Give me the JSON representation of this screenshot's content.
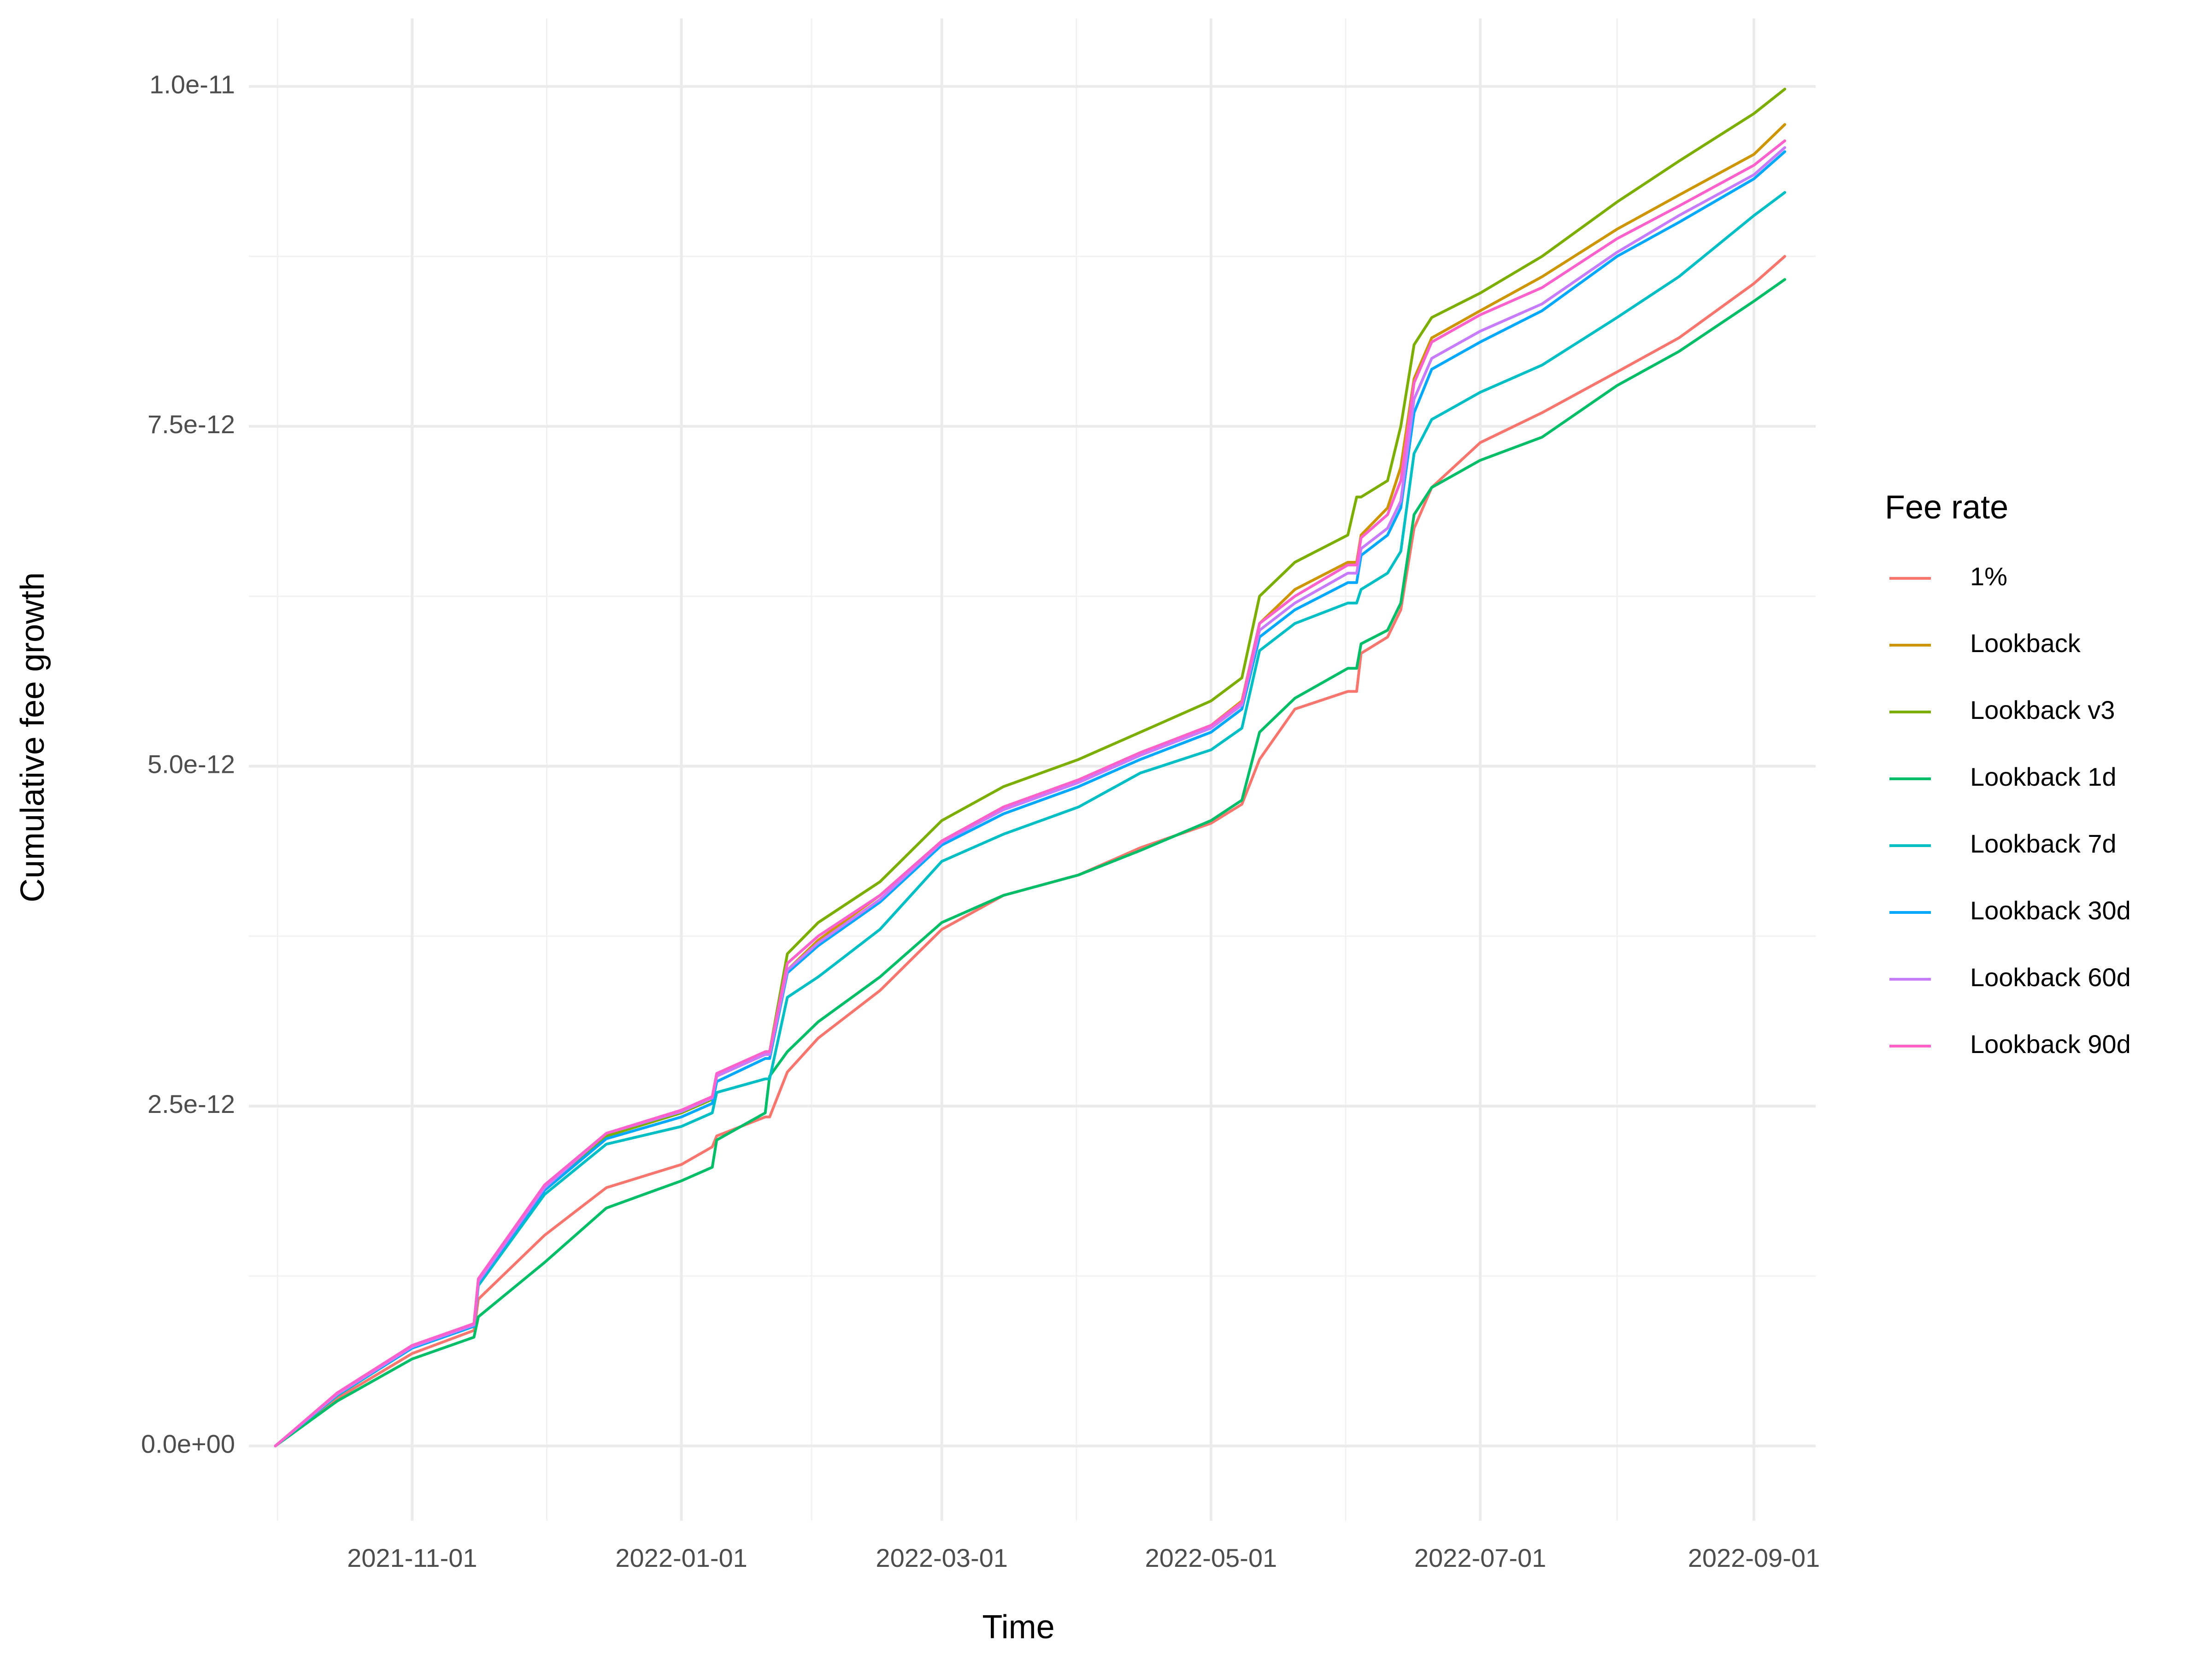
{
  "chart_data": {
    "type": "line",
    "xlabel": "Time",
    "ylabel": "Cumulative fee growth",
    "x_type": "date",
    "xlim": [
      "2021-09-25",
      "2022-09-15"
    ],
    "ylim": [
      -5.5e-13,
      1.05e-11
    ],
    "x_ticks": [
      "2021-11-01",
      "2022-01-01",
      "2022-03-01",
      "2022-05-01",
      "2022-07-01",
      "2022-09-01"
    ],
    "y_ticks": [
      0,
      2.5e-12,
      5e-12,
      7.5e-12,
      1e-11
    ],
    "y_tick_labels": [
      "0.0e+00",
      "2.5e-12",
      "5.0e-12",
      "7.5e-12",
      "1.0e-11"
    ],
    "grid": true,
    "legend": {
      "title": "Fee rate",
      "position": "right"
    },
    "x": [
      "2021-10-01",
      "2021-10-15",
      "2021-11-01",
      "2021-11-15",
      "2021-11-16",
      "2021-12-01",
      "2021-12-15",
      "2022-01-01",
      "2022-01-08",
      "2022-01-09",
      "2022-01-20",
      "2022-01-21",
      "2022-01-25",
      "2022-02-01",
      "2022-02-15",
      "2022-03-01",
      "2022-03-15",
      "2022-04-01",
      "2022-04-15",
      "2022-05-01",
      "2022-05-08",
      "2022-05-12",
      "2022-05-20",
      "2022-06-01",
      "2022-06-03",
      "2022-06-04",
      "2022-06-10",
      "2022-06-13",
      "2022-06-16",
      "2022-06-20",
      "2022-07-01",
      "2022-07-15",
      "2022-08-01",
      "2022-08-15",
      "2022-09-01",
      "2022-09-08"
    ],
    "series": [
      {
        "name": "1%",
        "color": "#F8766D",
        "values": [
          0,
          3.5e-13,
          6.8e-13,
          8.5e-13,
          1.08e-12,
          1.55e-12,
          1.9e-12,
          2.07e-12,
          2.2e-12,
          2.28e-12,
          2.42e-12,
          2.42e-12,
          2.75e-12,
          3e-12,
          3.35e-12,
          3.8e-12,
          4.05e-12,
          4.2e-12,
          4.4e-12,
          4.58e-12,
          4.72e-12,
          5.05e-12,
          5.42e-12,
          5.55e-12,
          5.55e-12,
          5.83e-12,
          5.95e-12,
          6.15e-12,
          6.75e-12,
          7.05e-12,
          7.38e-12,
          7.6e-12,
          7.9e-12,
          8.15e-12,
          8.55e-12,
          8.75e-12
        ]
      },
      {
        "name": "Lookback",
        "color": "#CD9600",
        "values": [
          0,
          3.8e-13,
          7.3e-13,
          9e-13,
          1.22e-12,
          1.9e-12,
          2.28e-12,
          2.45e-12,
          2.55e-12,
          2.72e-12,
          2.88e-12,
          2.88e-12,
          3.5e-12,
          3.72e-12,
          4.05e-12,
          4.45e-12,
          4.7e-12,
          4.9e-12,
          5.1e-12,
          5.3e-12,
          5.48e-12,
          6.05e-12,
          6.3e-12,
          6.5e-12,
          6.5e-12,
          6.7e-12,
          6.9e-12,
          7.2e-12,
          7.85e-12,
          8.15e-12,
          8.35e-12,
          8.6e-12,
          8.95e-12,
          9.2e-12,
          9.5e-12,
          9.72e-12
        ]
      },
      {
        "name": "Lookback v3",
        "color": "#7CAE00",
        "values": [
          0,
          3.8e-13,
          7.3e-13,
          9e-13,
          1.22e-12,
          1.9e-12,
          2.28e-12,
          2.45e-12,
          2.55e-12,
          2.72e-12,
          2.9e-12,
          2.9e-12,
          3.62e-12,
          3.85e-12,
          4.15e-12,
          4.6e-12,
          4.85e-12,
          5.05e-12,
          5.25e-12,
          5.48e-12,
          5.65e-12,
          6.25e-12,
          6.5e-12,
          6.7e-12,
          6.98e-12,
          6.98e-12,
          7.1e-12,
          7.5e-12,
          8.1e-12,
          8.3e-12,
          8.48e-12,
          8.75e-12,
          9.15e-12,
          9.45e-12,
          9.8e-12,
          9.98e-12
        ]
      },
      {
        "name": "Lookback 1d",
        "color": "#00BE67",
        "values": [
          0,
          3.3e-13,
          6.4e-13,
          8e-13,
          9.5e-13,
          1.35e-12,
          1.75e-12,
          1.95e-12,
          2.05e-12,
          2.25e-12,
          2.45e-12,
          2.72e-12,
          2.9e-12,
          3.12e-12,
          3.45e-12,
          3.85e-12,
          4.05e-12,
          4.2e-12,
          4.38e-12,
          4.6e-12,
          4.75e-12,
          5.25e-12,
          5.5e-12,
          5.72e-12,
          5.72e-12,
          5.9e-12,
          6e-12,
          6.2e-12,
          6.85e-12,
          7.05e-12,
          7.25e-12,
          7.42e-12,
          7.8e-12,
          8.05e-12,
          8.42e-12,
          8.58e-12
        ]
      },
      {
        "name": "Lookback 7d",
        "color": "#00BFC4",
        "values": [
          0,
          3.7e-13,
          7.2e-13,
          8.8e-13,
          1.18e-12,
          1.85e-12,
          2.22e-12,
          2.35e-12,
          2.45e-12,
          2.6e-12,
          2.7e-12,
          2.7e-12,
          3.3e-12,
          3.45e-12,
          3.8e-12,
          4.3e-12,
          4.5e-12,
          4.7e-12,
          4.95e-12,
          5.12e-12,
          5.28e-12,
          5.85e-12,
          6.05e-12,
          6.2e-12,
          6.2e-12,
          6.3e-12,
          6.42e-12,
          6.58e-12,
          7.3e-12,
          7.55e-12,
          7.75e-12,
          7.95e-12,
          8.3e-12,
          8.6e-12,
          9.05e-12,
          9.22e-12
        ]
      },
      {
        "name": "Lookback 30d",
        "color": "#00A9FF",
        "values": [
          0,
          3.8e-13,
          7.2e-13,
          8.8e-13,
          1.2e-12,
          1.88e-12,
          2.26e-12,
          2.42e-12,
          2.52e-12,
          2.68e-12,
          2.85e-12,
          2.85e-12,
          3.48e-12,
          3.68e-12,
          4e-12,
          4.42e-12,
          4.65e-12,
          4.85e-12,
          5.05e-12,
          5.25e-12,
          5.42e-12,
          5.95e-12,
          6.15e-12,
          6.35e-12,
          6.35e-12,
          6.55e-12,
          6.7e-12,
          6.9e-12,
          7.6e-12,
          7.92e-12,
          8.12e-12,
          8.35e-12,
          8.75e-12,
          9e-12,
          9.32e-12,
          9.52e-12
        ]
      },
      {
        "name": "Lookback 60d",
        "color": "#C77CFF",
        "values": [
          0,
          3.8e-13,
          7.3e-13,
          8.9e-13,
          1.21e-12,
          1.9e-12,
          2.3e-12,
          2.46e-12,
          2.56e-12,
          2.72e-12,
          2.88e-12,
          2.88e-12,
          3.5e-12,
          3.7e-12,
          4.02e-12,
          4.44e-12,
          4.68e-12,
          4.88e-12,
          5.08e-12,
          5.28e-12,
          5.45e-12,
          6e-12,
          6.2e-12,
          6.42e-12,
          6.42e-12,
          6.6e-12,
          6.75e-12,
          6.95e-12,
          7.7e-12,
          8e-12,
          8.2e-12,
          8.4e-12,
          8.78e-12,
          9.05e-12,
          9.35e-12,
          9.55e-12
        ]
      },
      {
        "name": "Lookback 90d",
        "color": "#FF61CC",
        "values": [
          0,
          3.9e-13,
          7.4e-13,
          9e-13,
          1.23e-12,
          1.92e-12,
          2.3e-12,
          2.47e-12,
          2.57e-12,
          2.74e-12,
          2.9e-12,
          2.9e-12,
          3.55e-12,
          3.75e-12,
          4.05e-12,
          4.45e-12,
          4.7e-12,
          4.9e-12,
          5.1e-12,
          5.3e-12,
          5.47e-12,
          6.05e-12,
          6.25e-12,
          6.48e-12,
          6.48e-12,
          6.68e-12,
          6.85e-12,
          7.1e-12,
          7.82e-12,
          8.12e-12,
          8.32e-12,
          8.52e-12,
          8.88e-12,
          9.12e-12,
          9.42e-12,
          9.6e-12
        ]
      }
    ]
  }
}
